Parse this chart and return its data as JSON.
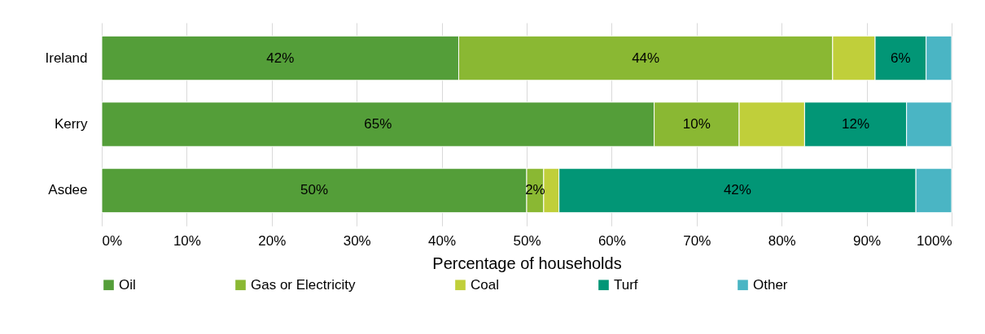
{
  "chart_data": {
    "type": "bar",
    "orientation": "horizontal",
    "stacked": true,
    "categories": [
      "Ireland",
      "Kerry",
      "Asdee"
    ],
    "series": [
      {
        "name": "Oil",
        "color": "#549e39",
        "values": [
          42,
          65,
          50
        ],
        "value_labels": [
          "42%",
          "65%",
          "50%"
        ]
      },
      {
        "name": "Gas or Electricity",
        "color": "#8ab833",
        "values": [
          44,
          10,
          2
        ],
        "value_labels": [
          "44%",
          "10%",
          "2%"
        ]
      },
      {
        "name": "Coal",
        "color": "#c0cf3a",
        "values": [
          5,
          7.7,
          1.8
        ],
        "value_labels": [
          null,
          null,
          null
        ]
      },
      {
        "name": "Turf",
        "color": "#029676",
        "values": [
          6,
          12,
          42
        ],
        "value_labels": [
          "6%",
          "12%",
          "42%"
        ]
      },
      {
        "name": "Other",
        "color": "#4ab5c4",
        "values": [
          3,
          5.3,
          4.2
        ],
        "value_labels": [
          null,
          null,
          null
        ]
      }
    ],
    "xlim": [
      0,
      100
    ],
    "xticks": [
      {
        "value": 0,
        "label": "0%"
      },
      {
        "value": 10,
        "label": "10%"
      },
      {
        "value": 20,
        "label": "20%"
      },
      {
        "value": 30,
        "label": "30%"
      },
      {
        "value": 40,
        "label": "40%"
      },
      {
        "value": 50,
        "label": "50%"
      },
      {
        "value": 60,
        "label": "60%"
      },
      {
        "value": 70,
        "label": "70%"
      },
      {
        "value": 80,
        "label": "80%"
      },
      {
        "value": 90,
        "label": "90%"
      },
      {
        "value": 100,
        "label": "100%"
      }
    ],
    "xlabel": "Percentage of households",
    "grid": "x",
    "legend": "bottom"
  }
}
